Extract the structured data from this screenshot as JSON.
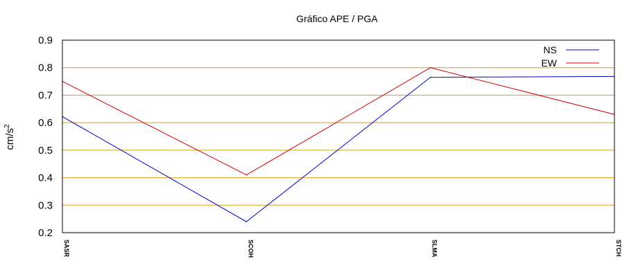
{
  "chart_data": {
    "type": "line",
    "title": "Gráfico  APE / PGA",
    "xlabel": "",
    "ylabel": "cm/s",
    "ylabel_superscript": "2",
    "categories": [
      "SASR",
      "SCOH",
      "SLMA",
      "STCH"
    ],
    "series": [
      {
        "name": "NS",
        "color": "#0000cc",
        "values": [
          0.622,
          0.24,
          0.765,
          0.768
        ]
      },
      {
        "name": "EW",
        "color": "#cc0000",
        "values": [
          0.75,
          0.41,
          0.8,
          0.63
        ]
      }
    ],
    "ylim": [
      0.2,
      0.9
    ],
    "yticks": [
      "0.2",
      "0.3",
      "0.4",
      "0.5",
      "0.6",
      "0.7",
      "0.8",
      "0.9"
    ],
    "grid": true,
    "grid_color": "#d4a017",
    "legend_position": "top-right"
  }
}
